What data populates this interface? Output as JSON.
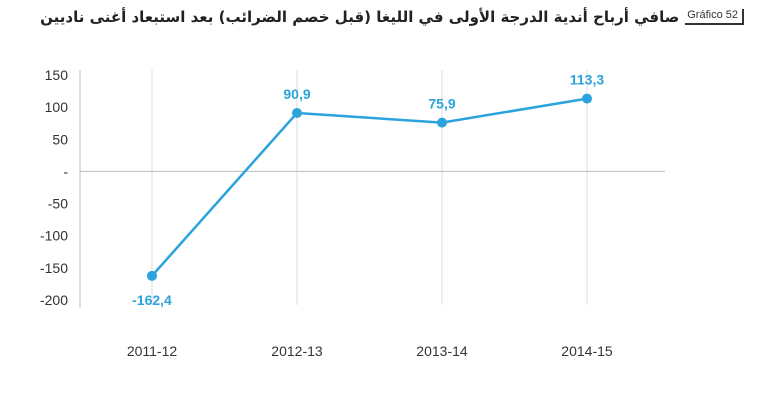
{
  "header": {
    "title": "صافي أرباح أندية الدرجة الأولى في الليغا (قبل خصم الضرائب) بعد استبعاد أغنى ناديين",
    "badge": "Gráfico 52"
  },
  "chart_data": {
    "type": "line",
    "title": "صافي أرباح أندية الدرجة الأولى في الليغا (قبل خصم الضرائب) بعد استبعاد أغنى ناديين",
    "categories": [
      "2011-12",
      "2012-13",
      "2013-14",
      "2014-15"
    ],
    "series": [
      {
        "values": [
          -162.4,
          90.9,
          75.9,
          113.3
        ],
        "labels": [
          "-162,4",
          "90,9",
          "75,9",
          "113,3"
        ]
      }
    ],
    "yticks": [
      150,
      100,
      50,
      0,
      -50,
      -100,
      -150,
      -200
    ],
    "ytick_labels": [
      "150",
      "100",
      "50",
      "-",
      "-50",
      "-100",
      "-150",
      "-200"
    ],
    "ylim": [
      -200,
      150
    ],
    "xlabel": "",
    "ylabel": "",
    "grid": "vertical",
    "line_color": "#2ba3dc"
  }
}
